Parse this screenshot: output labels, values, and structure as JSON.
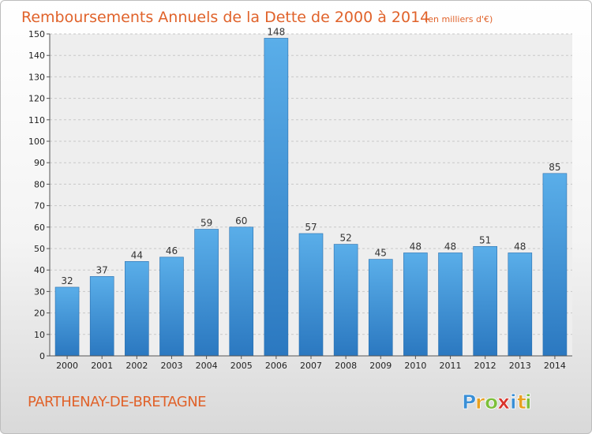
{
  "chart_data": {
    "type": "bar",
    "title": "Remboursements Annuels de la Dette de 2000 à 2014",
    "subtitle": "(en milliers d'€)",
    "categories": [
      "2000",
      "2001",
      "2002",
      "2003",
      "2004",
      "2005",
      "2006",
      "2007",
      "2008",
      "2009",
      "2010",
      "2011",
      "2012",
      "2013",
      "2014"
    ],
    "values": [
      32,
      37,
      44,
      46,
      59,
      60,
      148,
      57,
      52,
      45,
      48,
      48,
      51,
      48,
      85
    ],
    "ylim": [
      0,
      150
    ],
    "yticks": [
      0,
      10,
      20,
      30,
      40,
      50,
      60,
      70,
      80,
      90,
      100,
      110,
      120,
      130,
      140,
      150
    ],
    "grid": true,
    "bar_color": "#3d8fd6",
    "xlabel": "",
    "ylabel": ""
  },
  "footer": {
    "town": "PARTHENAY-DE-BRETAGNE",
    "logo_letters": [
      "P",
      "r",
      "o",
      "x",
      "i",
      "t",
      "i"
    ],
    "logo_colors": [
      "#3a8fd6",
      "#e8a020",
      "#7cbf3a",
      "#d9342b",
      "#3a8fd6",
      "#e8a020",
      "#7cbf3a"
    ]
  },
  "colors": {
    "accent": "#e0622a"
  }
}
